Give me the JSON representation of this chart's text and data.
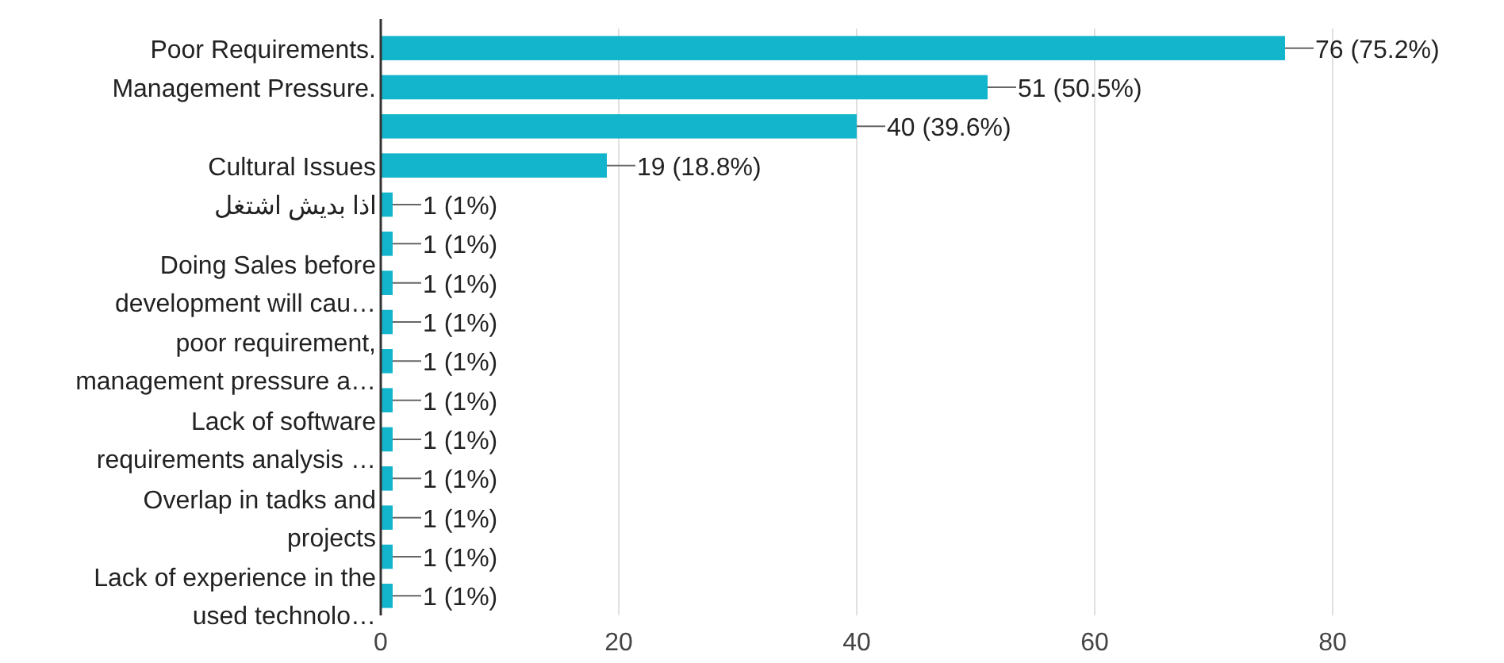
{
  "chart_data": {
    "type": "bar",
    "orientation": "horizontal",
    "categories": [
      "Poor Requirements.",
      "Management Pressure.",
      null,
      "Cultural Issues",
      "اذا بديش اشتغل",
      null,
      "Doing Sales before development will cau…",
      null,
      "poor requirement, management pressure a…",
      null,
      "Lack of software requirements analysis …",
      null,
      "Overlap in tadks and projects",
      null,
      "Lack of experience in the used technolo…"
    ],
    "values": [
      76,
      51,
      40,
      19,
      1,
      1,
      1,
      1,
      1,
      1,
      1,
      1,
      1,
      1,
      1
    ],
    "value_labels": [
      "76 (75.2%)",
      "51 (50.5%)",
      "40 (39.6%)",
      "19 (18.8%)",
      "1 (1%)",
      "1 (1%)",
      "1 (1%)",
      "1 (1%)",
      "1 (1%)",
      "1 (1%)",
      "1 (1%)",
      "1 (1%)",
      "1 (1%)",
      "1 (1%)",
      "1 (1%)"
    ],
    "color": "#12b5cb",
    "xlim": [
      0,
      80
    ],
    "xticks": [
      0,
      20,
      40,
      60,
      80
    ],
    "grid": "x"
  }
}
